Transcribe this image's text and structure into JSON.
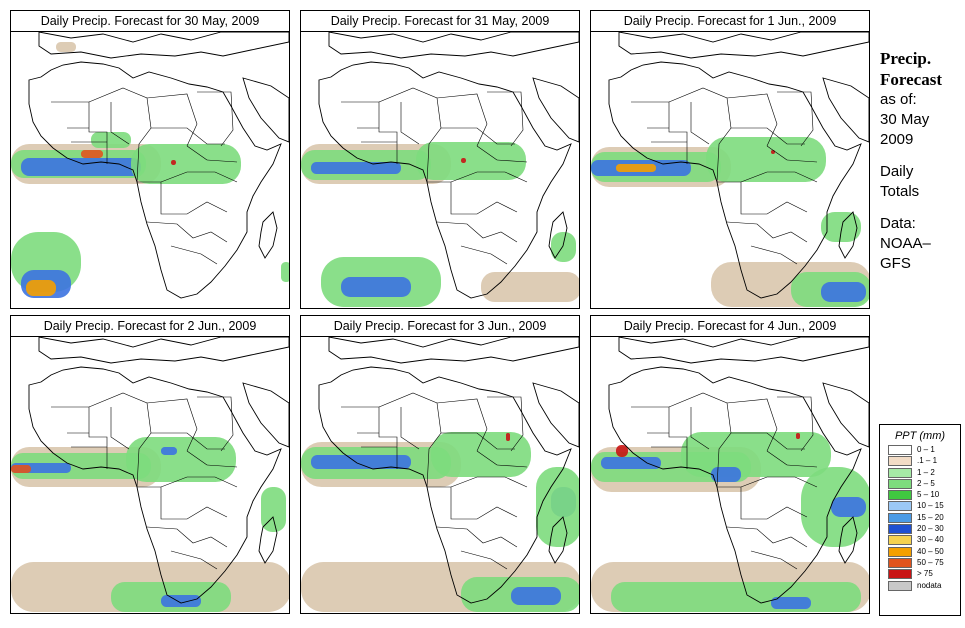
{
  "panels": [
    {
      "title": "Daily Precip. Forecast for  30 May, 2009",
      "blobs": [
        {
          "c": "#d9c7ad",
          "x": 0,
          "y": 112,
          "w": 150,
          "h": 40
        },
        {
          "c": "#7ddc7d",
          "x": 0,
          "y": 118,
          "w": 135,
          "h": 28
        },
        {
          "c": "#3c73e0",
          "x": 10,
          "y": 126,
          "w": 120,
          "h": 18
        },
        {
          "c": "#7ddc7d",
          "x": 120,
          "y": 112,
          "w": 110,
          "h": 40
        },
        {
          "c": "#7ddc7d",
          "x": 80,
          "y": 100,
          "w": 40,
          "h": 16
        },
        {
          "c": "#e0541e",
          "x": 70,
          "y": 118,
          "w": 22,
          "h": 8
        },
        {
          "c": "#c81414",
          "x": 160,
          "y": 128,
          "w": 5,
          "h": 5
        },
        {
          "c": "#7ddc7d",
          "x": 0,
          "y": 200,
          "w": 70,
          "h": 60
        },
        {
          "c": "#3c73e0",
          "x": 10,
          "y": 238,
          "w": 50,
          "h": 28
        },
        {
          "c": "#f5a000",
          "x": 15,
          "y": 248,
          "w": 30,
          "h": 16
        },
        {
          "c": "#7ddc7d",
          "x": 270,
          "y": 230,
          "w": 10,
          "h": 20
        },
        {
          "c": "#d9c7ad",
          "x": 45,
          "y": 10,
          "w": 20,
          "h": 10
        }
      ]
    },
    {
      "title": "Daily Precip. Forecast for  31 May, 2009",
      "blobs": [
        {
          "c": "#d9c7ad",
          "x": 0,
          "y": 112,
          "w": 150,
          "h": 40
        },
        {
          "c": "#7ddc7d",
          "x": 0,
          "y": 118,
          "w": 130,
          "h": 30
        },
        {
          "c": "#3c73e0",
          "x": 10,
          "y": 130,
          "w": 90,
          "h": 12
        },
        {
          "c": "#7ddc7d",
          "x": 115,
          "y": 110,
          "w": 110,
          "h": 38
        },
        {
          "c": "#c81414",
          "x": 160,
          "y": 126,
          "w": 5,
          "h": 5
        },
        {
          "c": "#7ddc7d",
          "x": 20,
          "y": 225,
          "w": 120,
          "h": 50
        },
        {
          "c": "#3c73e0",
          "x": 40,
          "y": 245,
          "w": 70,
          "h": 20
        },
        {
          "c": "#d9c7ad",
          "x": 180,
          "y": 240,
          "w": 100,
          "h": 30
        },
        {
          "c": "#7ddc7d",
          "x": 250,
          "y": 200,
          "w": 25,
          "h": 30
        }
      ]
    },
    {
      "title": "Daily Precip. Forecast for  1 Jun., 2009",
      "blobs": [
        {
          "c": "#d9c7ad",
          "x": 0,
          "y": 115,
          "w": 140,
          "h": 40
        },
        {
          "c": "#7ddc7d",
          "x": 0,
          "y": 120,
          "w": 130,
          "h": 30
        },
        {
          "c": "#3c73e0",
          "x": 0,
          "y": 128,
          "w": 100,
          "h": 16
        },
        {
          "c": "#f5a000",
          "x": 25,
          "y": 132,
          "w": 40,
          "h": 8
        },
        {
          "c": "#7ddc7d",
          "x": 115,
          "y": 105,
          "w": 120,
          "h": 45
        },
        {
          "c": "#c81414",
          "x": 180,
          "y": 118,
          "w": 4,
          "h": 4
        },
        {
          "c": "#d9c7ad",
          "x": 120,
          "y": 230,
          "w": 160,
          "h": 45
        },
        {
          "c": "#7ddc7d",
          "x": 200,
          "y": 240,
          "w": 80,
          "h": 35
        },
        {
          "c": "#3c73e0",
          "x": 230,
          "y": 250,
          "w": 45,
          "h": 20
        },
        {
          "c": "#7ddc7d",
          "x": 230,
          "y": 180,
          "w": 40,
          "h": 30
        }
      ]
    },
    {
      "title": "Daily Precip. Forecast for  2 Jun., 2009",
      "blobs": [
        {
          "c": "#d9c7ad",
          "x": 0,
          "y": 110,
          "w": 150,
          "h": 40
        },
        {
          "c": "#7ddc7d",
          "x": 0,
          "y": 116,
          "w": 140,
          "h": 26
        },
        {
          "c": "#3c73e0",
          "x": 0,
          "y": 126,
          "w": 60,
          "h": 10
        },
        {
          "c": "#e0541e",
          "x": 0,
          "y": 128,
          "w": 20,
          "h": 8
        },
        {
          "c": "#7ddc7d",
          "x": 115,
          "y": 100,
          "w": 110,
          "h": 45
        },
        {
          "c": "#3c73e0",
          "x": 150,
          "y": 110,
          "w": 16,
          "h": 8
        },
        {
          "c": "#d9c7ad",
          "x": 0,
          "y": 225,
          "w": 280,
          "h": 50
        },
        {
          "c": "#7ddc7d",
          "x": 100,
          "y": 245,
          "w": 120,
          "h": 30
        },
        {
          "c": "#3c73e0",
          "x": 150,
          "y": 258,
          "w": 40,
          "h": 12
        },
        {
          "c": "#7ddc7d",
          "x": 250,
          "y": 150,
          "w": 25,
          "h": 45
        }
      ]
    },
    {
      "title": "Daily Precip. Forecast for  3 Jun., 2009",
      "blobs": [
        {
          "c": "#d9c7ad",
          "x": 0,
          "y": 105,
          "w": 160,
          "h": 45
        },
        {
          "c": "#7ddc7d",
          "x": 0,
          "y": 110,
          "w": 150,
          "h": 32
        },
        {
          "c": "#3c73e0",
          "x": 10,
          "y": 118,
          "w": 100,
          "h": 14
        },
        {
          "c": "#7ddc7d",
          "x": 130,
          "y": 95,
          "w": 100,
          "h": 45
        },
        {
          "c": "#c81414",
          "x": 205,
          "y": 96,
          "w": 4,
          "h": 8
        },
        {
          "c": "#3c73e0",
          "x": 250,
          "y": 150,
          "w": 25,
          "h": 30
        },
        {
          "c": "#7ddc7d",
          "x": 235,
          "y": 130,
          "w": 45,
          "h": 80
        },
        {
          "c": "#d9c7ad",
          "x": 0,
          "y": 225,
          "w": 280,
          "h": 50
        },
        {
          "c": "#7ddc7d",
          "x": 160,
          "y": 240,
          "w": 120,
          "h": 35
        },
        {
          "c": "#3c73e0",
          "x": 210,
          "y": 250,
          "w": 50,
          "h": 18
        }
      ]
    },
    {
      "title": "Daily Precip. Forecast for  4 Jun., 2009",
      "blobs": [
        {
          "c": "#d9c7ad",
          "x": 0,
          "y": 110,
          "w": 170,
          "h": 45
        },
        {
          "c": "#7ddc7d",
          "x": 0,
          "y": 115,
          "w": 160,
          "h": 30
        },
        {
          "c": "#3c73e0",
          "x": 10,
          "y": 120,
          "w": 60,
          "h": 12
        },
        {
          "c": "#c81414",
          "x": 25,
          "y": 108,
          "w": 12,
          "h": 12
        },
        {
          "c": "#7ddc7d",
          "x": 90,
          "y": 95,
          "w": 150,
          "h": 45
        },
        {
          "c": "#3c73e0",
          "x": 120,
          "y": 130,
          "w": 30,
          "h": 15
        },
        {
          "c": "#c81414",
          "x": 205,
          "y": 96,
          "w": 4,
          "h": 6
        },
        {
          "c": "#7ddc7d",
          "x": 210,
          "y": 130,
          "w": 70,
          "h": 80
        },
        {
          "c": "#3c73e0",
          "x": 240,
          "y": 160,
          "w": 35,
          "h": 20
        },
        {
          "c": "#d9c7ad",
          "x": 0,
          "y": 225,
          "w": 280,
          "h": 50
        },
        {
          "c": "#7ddc7d",
          "x": 20,
          "y": 245,
          "w": 250,
          "h": 30
        },
        {
          "c": "#3c73e0",
          "x": 180,
          "y": 260,
          "w": 40,
          "h": 12
        }
      ]
    }
  ],
  "side": {
    "title1": "Precip.",
    "title2": "Forecast",
    "asof": "as of:",
    "date1": "30 May",
    "date2": "2009",
    "daily1": "Daily",
    "daily2": "Totals",
    "data1": "Data:",
    "data2": "NOAA–",
    "data3": "GFS"
  },
  "legend": {
    "title": "PPT (mm)",
    "items": [
      {
        "label": "0 – 1",
        "color": "#ffffff"
      },
      {
        "label": ".1 – 1",
        "color": "#f2dcc6"
      },
      {
        "label": "1 – 2",
        "color": "#a6eaa6"
      },
      {
        "label": "2 – 5",
        "color": "#7ddc7d"
      },
      {
        "label": "5 – 10",
        "color": "#40c840"
      },
      {
        "label": "10 – 15",
        "color": "#9bc8f5"
      },
      {
        "label": "15 – 20",
        "color": "#4b9be6"
      },
      {
        "label": "20 – 30",
        "color": "#1e50d2"
      },
      {
        "label": "30 – 40",
        "color": "#f5d250"
      },
      {
        "label": "40 – 50",
        "color": "#f5a000"
      },
      {
        "label": "50 – 75",
        "color": "#e0541e"
      },
      {
        "label": "> 75",
        "color": "#c81414"
      },
      {
        "label": "nodata",
        "color": "#c8c8c8"
      }
    ]
  }
}
